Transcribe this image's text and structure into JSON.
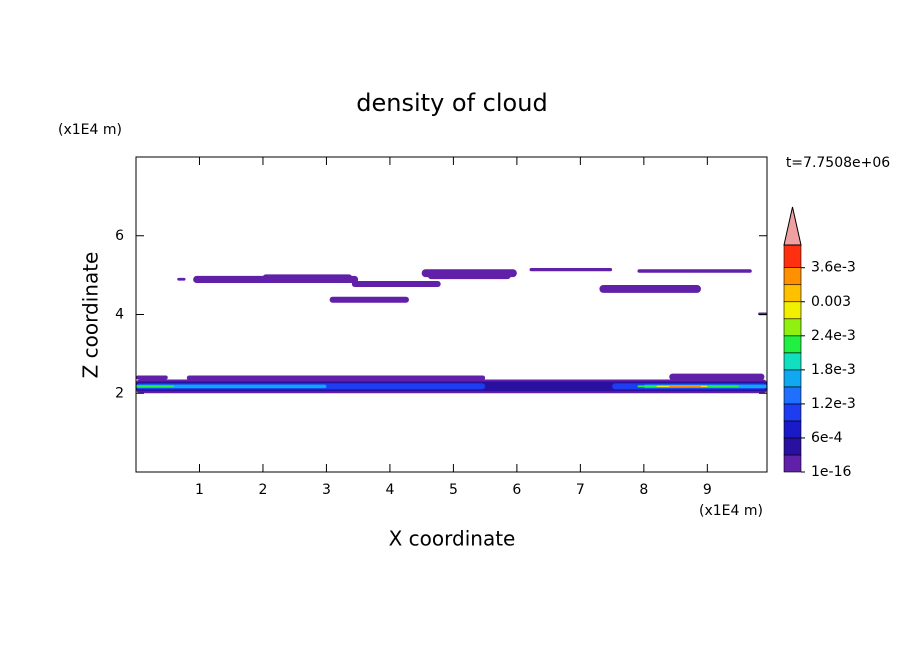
{
  "chart_data": {
    "type": "contour",
    "title": "density of cloud",
    "x_label": "X coordinate",
    "y_label": "Z coordinate",
    "x_unit": "(x1E4 m)",
    "y_unit": "(x1E4 m)",
    "annotation": "t=7.7508e+06",
    "xlim": [
      0,
      9.94
    ],
    "ylim": [
      0,
      8
    ],
    "xticks": [
      1,
      2,
      3,
      4,
      5,
      6,
      7,
      8,
      9
    ],
    "yticks": [
      2,
      4,
      6
    ],
    "colorbar": {
      "levels": [
        1e-16,
        0.0003,
        0.0006,
        0.0009,
        0.0012,
        0.0015,
        0.0018,
        0.0021,
        0.0024,
        0.0027,
        0.003,
        0.0033,
        0.0036,
        0.004
      ],
      "colors": [
        "#6020a8",
        "#2a10a0",
        "#1a1ac8",
        "#1e3cf0",
        "#2070ff",
        "#10a8f0",
        "#10e0c0",
        "#20f040",
        "#90f010",
        "#f0f000",
        "#ffc000",
        "#ff9000",
        "#ff3010"
      ],
      "extend_color": "#f0a0a0",
      "ticks": [
        {
          "value": 1e-16,
          "label": "1e-16"
        },
        {
          "value": 0.0006,
          "label": "6e-4"
        },
        {
          "value": 0.0012,
          "label": "1.2e-3"
        },
        {
          "value": 0.0018,
          "label": "1.8e-3"
        },
        {
          "value": 0.0024,
          "label": "2.4e-3"
        },
        0.003,
        {
          "value": 0.0036,
          "label": "3.6e-3"
        }
      ]
    },
    "field": [
      {
        "x": [
          0.65,
          0.78
        ],
        "z": [
          4.86,
          4.93
        ],
        "value": 0.0001
      },
      {
        "x": [
          0.9,
          3.5
        ],
        "z": [
          4.8,
          4.98
        ],
        "value": 0.0001
      },
      {
        "x": [
          2.0,
          3.4
        ],
        "z": [
          4.88,
          5.02
        ],
        "value": 0.0001
      },
      {
        "x": [
          3.4,
          4.8
        ],
        "z": [
          4.7,
          4.85
        ],
        "value": 0.0001
      },
      {
        "x": [
          4.5,
          6.0
        ],
        "z": [
          4.95,
          5.15
        ],
        "value": 0.0001
      },
      {
        "x": [
          4.6,
          5.9
        ],
        "z": [
          4.9,
          5.05
        ],
        "value": 0.0001
      },
      {
        "x": [
          6.2,
          7.5
        ],
        "z": [
          5.1,
          5.18
        ],
        "value": 0.0001
      },
      {
        "x": [
          7.9,
          9.7
        ],
        "z": [
          5.06,
          5.15
        ],
        "value": 0.0001
      },
      {
        "x": [
          7.3,
          8.9
        ],
        "z": [
          4.55,
          4.75
        ],
        "value": 0.0001
      },
      {
        "x": [
          3.05,
          4.3
        ],
        "z": [
          4.3,
          4.45
        ],
        "value": 0.0001
      },
      {
        "x": [
          9.8,
          9.94
        ],
        "z": [
          3.98,
          4.05
        ],
        "value": 0.0001
      },
      {
        "x": [
          0.0,
          0.5
        ],
        "z": [
          2.35,
          2.45
        ],
        "value": 0.0001
      },
      {
        "x": [
          0.8,
          5.5
        ],
        "z": [
          2.33,
          2.45
        ],
        "value": 0.0001
      },
      {
        "x": [
          8.4,
          9.9
        ],
        "z": [
          2.33,
          2.5
        ],
        "value": 0.0001
      },
      {
        "x": [
          0.0,
          9.94
        ],
        "z": [
          2.0,
          2.35
        ],
        "value": 0.0001
      },
      {
        "x": [
          0.0,
          9.94
        ],
        "z": [
          2.05,
          2.3
        ],
        "value": 0.0004
      },
      {
        "x": [
          0.0,
          5.5
        ],
        "z": [
          2.1,
          2.25
        ],
        "value": 0.001
      },
      {
        "x": [
          7.5,
          9.94
        ],
        "z": [
          2.1,
          2.25
        ],
        "value": 0.001
      },
      {
        "x": [
          0.0,
          3.0
        ],
        "z": [
          2.13,
          2.22
        ],
        "value": 0.0016
      },
      {
        "x": [
          8.0,
          9.94
        ],
        "z": [
          2.13,
          2.22
        ],
        "value": 0.0016
      },
      {
        "x": [
          0.0,
          0.6
        ],
        "z": [
          2.15,
          2.2
        ],
        "value": 0.0022
      },
      {
        "x": [
          7.9,
          9.5
        ],
        "z": [
          2.15,
          2.2
        ],
        "value": 0.0022
      },
      {
        "x": [
          8.2,
          9.0
        ],
        "z": [
          2.16,
          2.19
        ],
        "value": 0.0028
      },
      {
        "x": [
          8.4,
          8.9
        ],
        "z": [
          2.165,
          2.185
        ],
        "value": 0.0035
      }
    ]
  }
}
